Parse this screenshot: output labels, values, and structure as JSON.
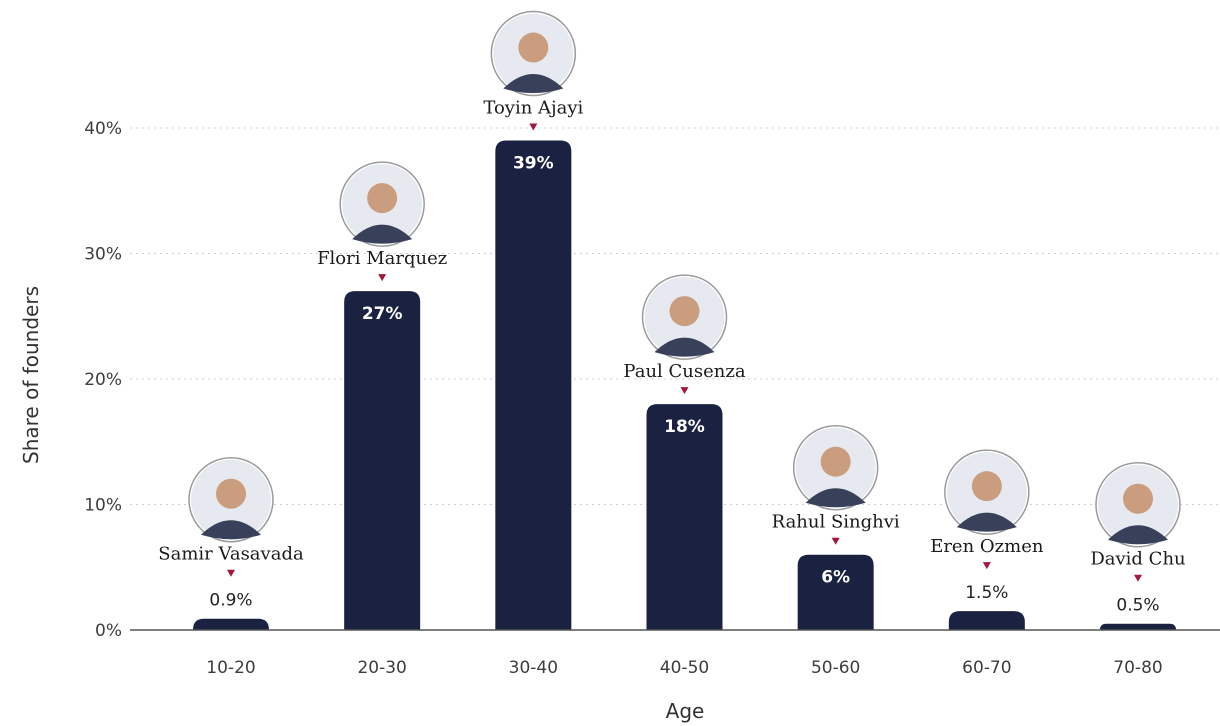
{
  "chart_data": {
    "type": "bar",
    "xlabel": "Age",
    "ylabel": "Share of founders",
    "ylim": [
      0,
      40
    ],
    "yticks": [
      "0%",
      "10%",
      "20%",
      "30%",
      "40%"
    ],
    "grid": true,
    "categories": [
      "10-20",
      "20-30",
      "30-40",
      "40-50",
      "50-60",
      "60-70",
      "70-80"
    ],
    "values": [
      0.9,
      27,
      39,
      18,
      6,
      1.5,
      0.5
    ],
    "value_labels": [
      "0.9%",
      "27%",
      "39%",
      "18%",
      "6%",
      "1.5%",
      "0.5%"
    ],
    "annotations": [
      "Samir Vasavada",
      "Flori Marquez",
      "Toyin Ajayi",
      "Paul Cusenza",
      "Rahul Singhvi",
      "Eren Ozmen",
      "David Chu"
    ],
    "bar_color": "#1b2140",
    "marker_color": "#a3173d",
    "icon": "founder-portrait-icon"
  }
}
